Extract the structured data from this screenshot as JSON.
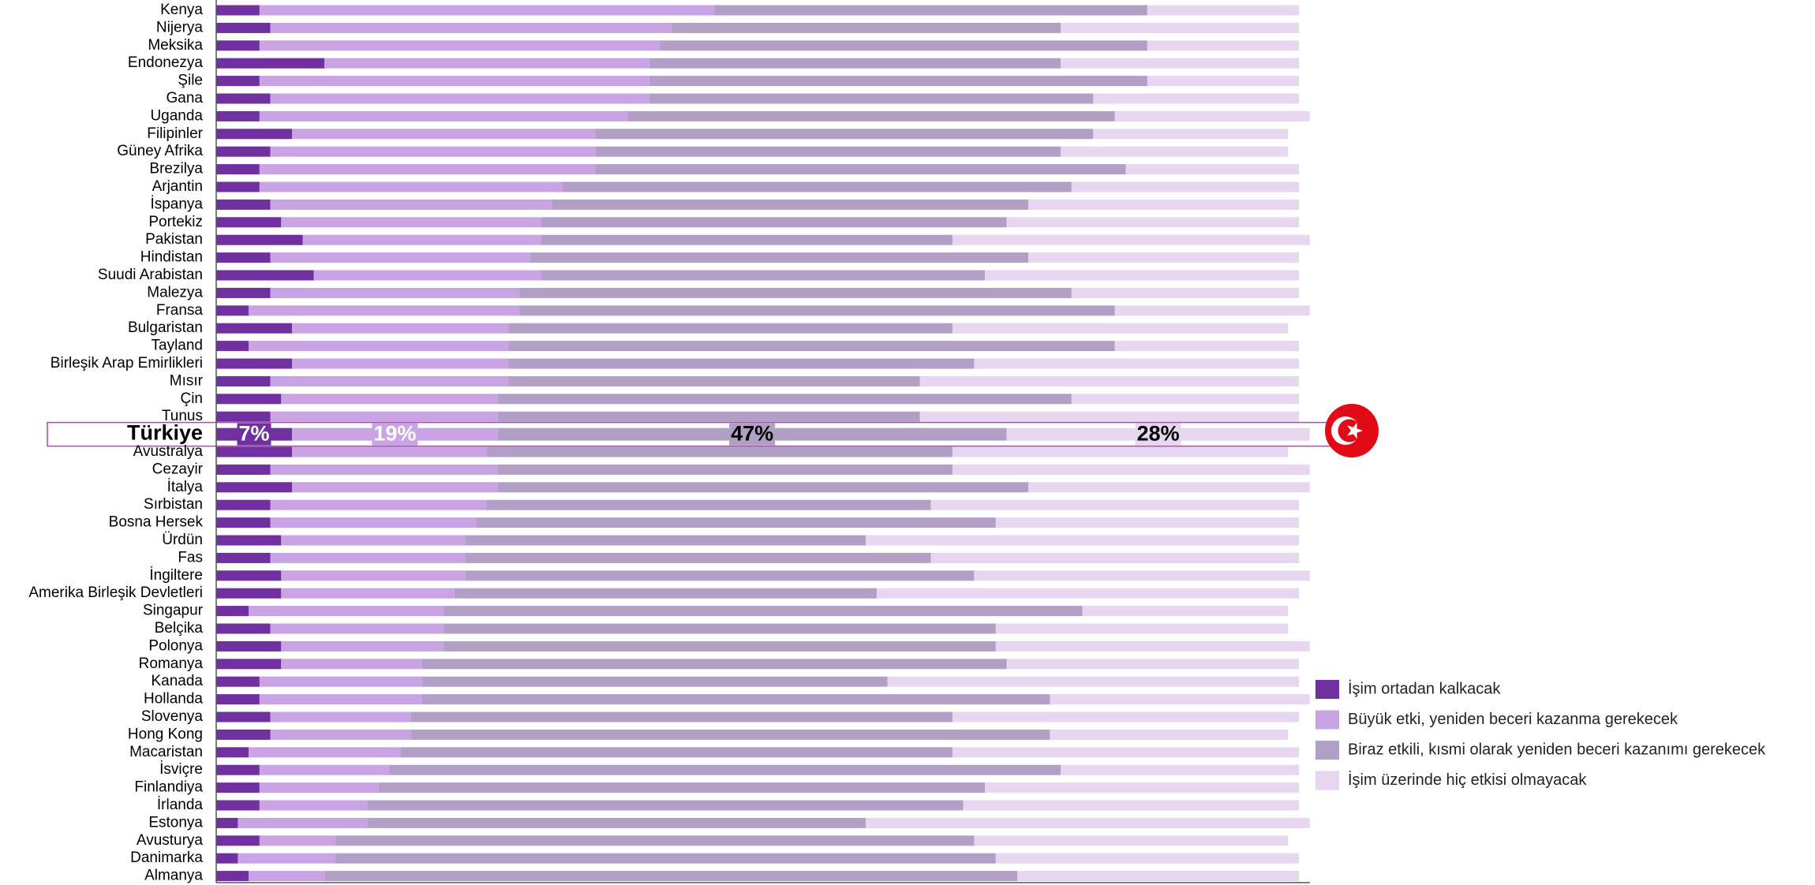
{
  "chart_data": {
    "type": "stacked_bar_horizontal",
    "categories": [
      "Kenya",
      "Nijerya",
      "Meksika",
      "Endonezya",
      "Şile",
      "Gana",
      "Uganda",
      "Filipinler",
      "Güney Afrika",
      "Brezilya",
      "Arjantin",
      "İspanya",
      "Portekiz",
      "Pakistan",
      "Hindistan",
      "Suudi Arabistan",
      "Malezya",
      "Fransa",
      "Bulgaristan",
      "Tayland",
      "Birleşik Arap Emirlikleri",
      "Mısır",
      "Çin",
      "Tunus",
      "Türkiye",
      "Avustralya",
      "Cezayir",
      "İtalya",
      "Sırbistan",
      "Bosna Hersek",
      "Ürdün",
      "Fas",
      "İngiltere",
      "Amerika Birleşik Devletleri",
      "Singapur",
      "Belçika",
      "Polonya",
      "Romanya",
      "Kanada",
      "Hollanda",
      "Slovenya",
      "Hong Kong",
      "Macaristan",
      "İsviçre",
      "Finlandiya",
      "İrlanda",
      "Estonya",
      "Avusturya",
      "Danimarka",
      "Almanya"
    ],
    "series": [
      {
        "name": "İşim ortadan kalkacak",
        "color": "#7030a0",
        "values": [
          4,
          5,
          4,
          10,
          4,
          5,
          4,
          7,
          5,
          4,
          4,
          5,
          6,
          8,
          5,
          9,
          5,
          3,
          7,
          3,
          7,
          5,
          6,
          5,
          7,
          7,
          5,
          7,
          5,
          5,
          6,
          5,
          6,
          6,
          3,
          5,
          6,
          6,
          4,
          4,
          5,
          5,
          3,
          4,
          4,
          4,
          2,
          4,
          2,
          3
        ]
      },
      {
        "name": "Büyük etki, yeniden beceri kazanma gerekecek",
        "color": "#c9a3e3",
        "values": [
          42,
          37,
          37,
          30,
          36,
          35,
          34,
          28,
          30,
          31,
          28,
          26,
          24,
          22,
          24,
          21,
          23,
          25,
          20,
          24,
          20,
          22,
          20,
          21,
          19,
          18,
          21,
          19,
          20,
          19,
          17,
          18,
          17,
          16,
          18,
          16,
          15,
          13,
          15,
          15,
          13,
          13,
          14,
          12,
          11,
          10,
          12,
          7,
          9,
          7
        ]
      },
      {
        "name": "Biraz etkili, kısmi olarak yeniden beceri kazanımı gerekecek",
        "color": "#b19fc6",
        "values": [
          40,
          36,
          45,
          38,
          46,
          41,
          45,
          46,
          43,
          49,
          47,
          44,
          43,
          38,
          46,
          41,
          51,
          55,
          41,
          56,
          43,
          38,
          53,
          39,
          47,
          43,
          42,
          49,
          41,
          48,
          37,
          43,
          47,
          39,
          59,
          51,
          51,
          54,
          43,
          58,
          50,
          59,
          51,
          62,
          56,
          55,
          46,
          59,
          61,
          64
        ]
      },
      {
        "name": "İşim üzerinde hiç etkisi olmayacak",
        "color": "#e7d6f0",
        "values": [
          14,
          22,
          14,
          22,
          14,
          19,
          18,
          18,
          21,
          16,
          21,
          25,
          27,
          33,
          25,
          29,
          21,
          18,
          31,
          17,
          30,
          35,
          21,
          35,
          28,
          31,
          33,
          26,
          34,
          28,
          40,
          34,
          31,
          39,
          19,
          27,
          29,
          27,
          38,
          24,
          32,
          22,
          32,
          22,
          29,
          31,
          41,
          29,
          28,
          26
        ]
      }
    ],
    "xlim": [
      0,
      100
    ],
    "highlight": "Türkiye",
    "highlight_labels": [
      "7%",
      "19%",
      "47%",
      "28%"
    ],
    "legend": "right"
  }
}
